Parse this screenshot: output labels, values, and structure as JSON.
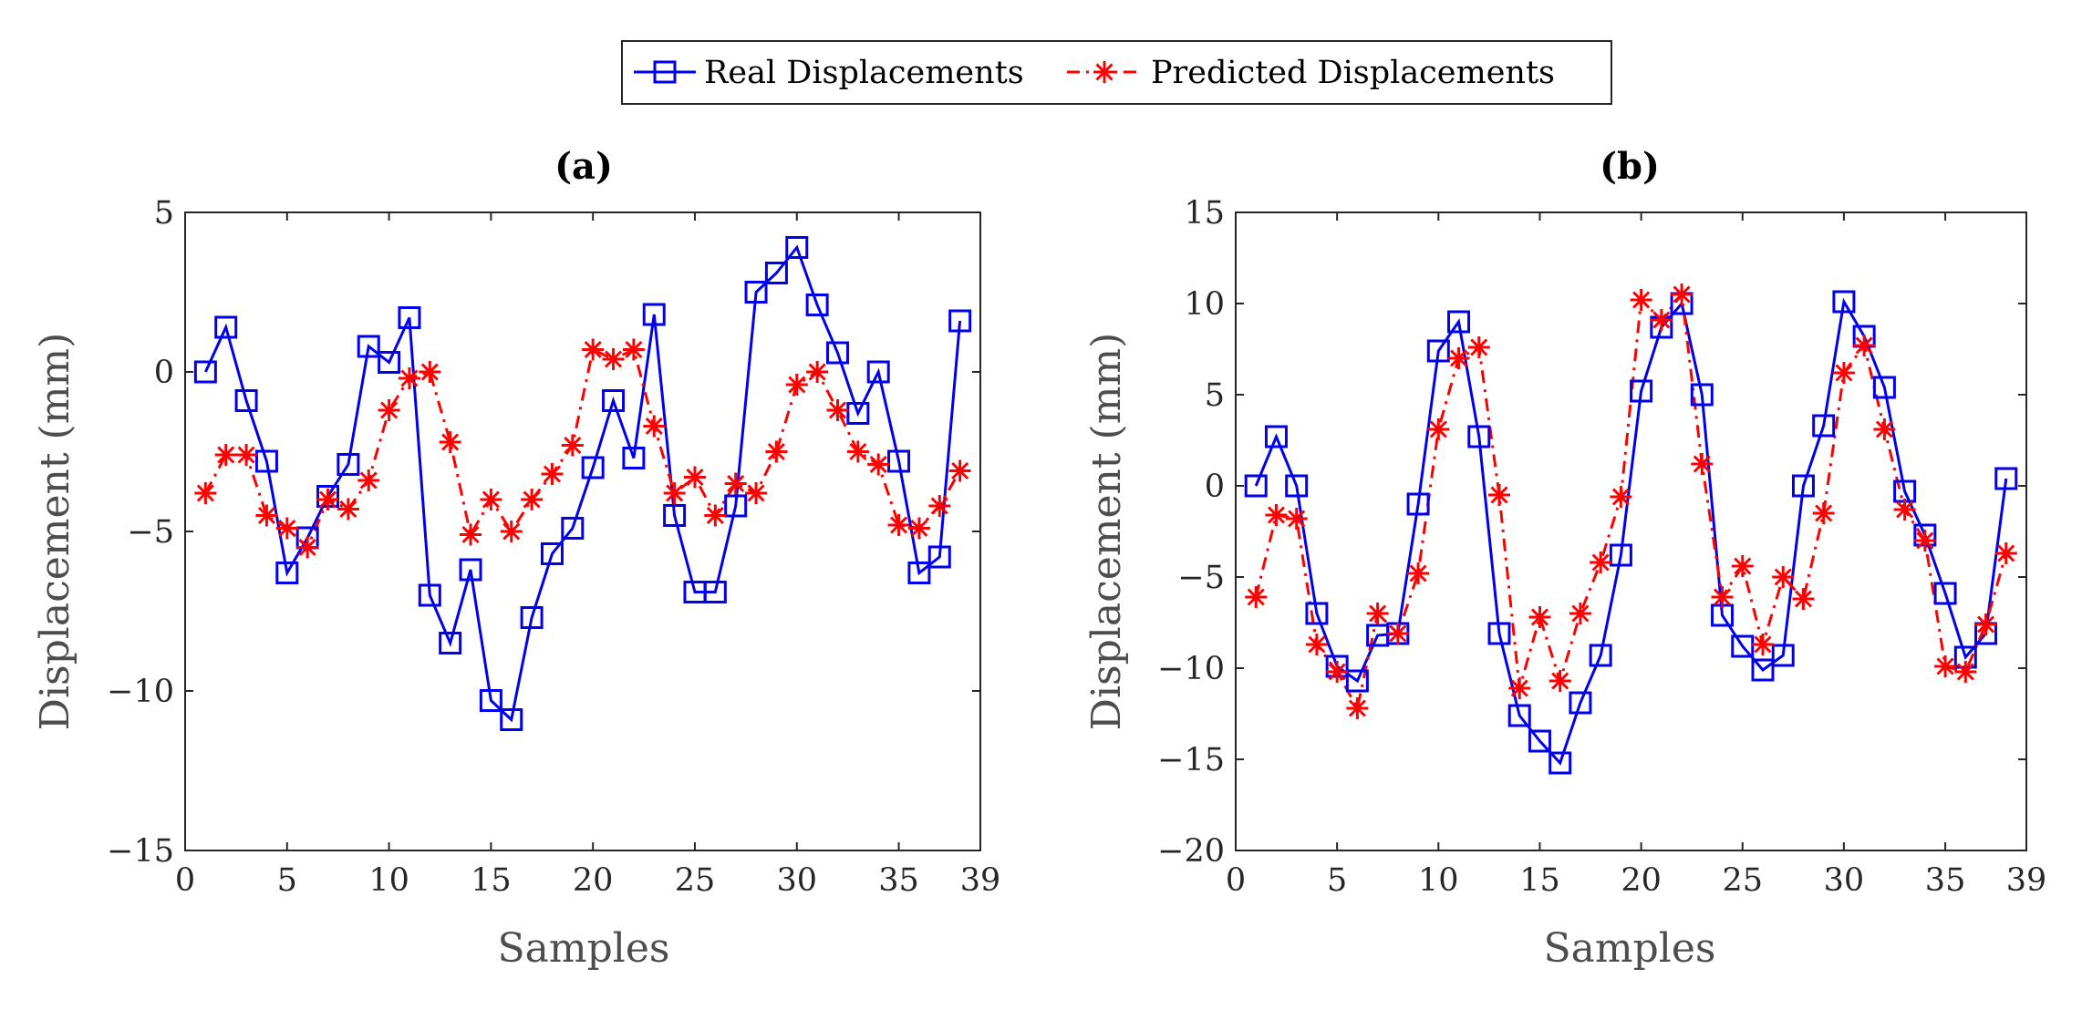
{
  "legend": {
    "real_label": "Real Displacements",
    "pred_label": "Predicted Displacements"
  },
  "colors": {
    "real": "#0000ee",
    "predicted": "#ff0000",
    "axis": "#262626"
  },
  "chart_data": [
    {
      "type": "line",
      "title": "(a)",
      "xlabel": "Samples",
      "ylabel": "Displacement (mm)",
      "xlim": [
        0,
        39
      ],
      "ylim": [
        -15,
        5
      ],
      "xticks": [
        0,
        5,
        10,
        15,
        20,
        25,
        30,
        35,
        39
      ],
      "yticks": [
        -15,
        -10,
        -5,
        0,
        5
      ],
      "ytick_labels": [
        "−15",
        "−10",
        "−5",
        "0",
        "5"
      ],
      "x": [
        1,
        2,
        3,
        4,
        5,
        6,
        7,
        8,
        9,
        10,
        11,
        12,
        13,
        14,
        15,
        16,
        17,
        18,
        19,
        20,
        21,
        22,
        23,
        24,
        25,
        26,
        27,
        28,
        29,
        30,
        31,
        32,
        33,
        34,
        35,
        36,
        37,
        38
      ],
      "series": [
        {
          "name": "Real Displacements",
          "marker": "square",
          "values": [
            0,
            1.4,
            -0.9,
            -2.8,
            -6.3,
            -5.2,
            -3.9,
            -2.9,
            0.8,
            0.3,
            1.7,
            -7.0,
            -8.5,
            -6.2,
            -10.3,
            -10.9,
            -7.7,
            -5.7,
            -4.9,
            -3.0,
            -0.9,
            -2.7,
            1.8,
            -4.5,
            -6.9,
            -6.9,
            -4.2,
            2.5,
            3.1,
            3.9,
            2.1,
            0.6,
            -1.3,
            0.0,
            -2.8,
            -6.3,
            -5.8,
            1.6
          ]
        },
        {
          "name": "Predicted Displacements",
          "marker": "asterisk",
          "values": [
            -3.8,
            -2.6,
            -2.6,
            -4.5,
            -4.9,
            -5.5,
            -4.0,
            -4.3,
            -3.4,
            -1.2,
            -0.2,
            0.0,
            -2.2,
            -5.1,
            -4.0,
            -5.0,
            -4.0,
            -3.2,
            -2.3,
            0.7,
            0.4,
            0.7,
            -1.7,
            -3.8,
            -3.3,
            -4.5,
            -3.5,
            -3.8,
            -2.5,
            -0.4,
            0.0,
            -1.2,
            -2.5,
            -2.9,
            -4.8,
            -4.9,
            -4.2,
            -3.1
          ]
        }
      ]
    },
    {
      "type": "line",
      "title": "(b)",
      "xlabel": "Samples",
      "ylabel": "Displacement (mm)",
      "xlim": [
        0,
        39
      ],
      "ylim": [
        -20,
        15
      ],
      "xticks": [
        0,
        5,
        10,
        15,
        20,
        25,
        30,
        35,
        39
      ],
      "yticks": [
        -20,
        -15,
        -10,
        -5,
        0,
        5,
        10,
        15
      ],
      "ytick_labels": [
        "−20",
        "−15",
        "−10",
        "−5",
        "0",
        "5",
        "10",
        "15"
      ],
      "x": [
        1,
        2,
        3,
        4,
        5,
        6,
        7,
        8,
        9,
        10,
        11,
        12,
        13,
        14,
        15,
        16,
        17,
        18,
        19,
        20,
        21,
        22,
        23,
        24,
        25,
        26,
        27,
        28,
        29,
        30,
        31,
        32,
        33,
        34,
        35,
        36,
        37,
        38
      ],
      "series": [
        {
          "name": "Real Displacements",
          "marker": "square",
          "values": [
            0,
            2.7,
            0.0,
            -7.0,
            -9.9,
            -10.7,
            -8.2,
            -8.1,
            -1.0,
            7.4,
            9.0,
            2.7,
            -8.1,
            -12.6,
            -14.0,
            -15.2,
            -11.9,
            -9.3,
            -3.8,
            5.2,
            8.7,
            10.0,
            5.0,
            -7.1,
            -8.8,
            -10.1,
            -9.3,
            0.0,
            3.3,
            10.1,
            8.2,
            5.4,
            -0.3,
            -2.7,
            -5.9,
            -9.4,
            -8.1,
            0.4
          ]
        },
        {
          "name": "Predicted Displacements",
          "marker": "asterisk",
          "values": [
            -6.1,
            -1.6,
            -1.8,
            -8.7,
            -10.2,
            -12.2,
            -7.0,
            -8.1,
            -4.8,
            3.1,
            7.0,
            7.6,
            -0.5,
            -11.1,
            -7.2,
            -10.7,
            -7.0,
            -4.2,
            -0.6,
            10.2,
            9.1,
            10.5,
            1.2,
            -6.1,
            -4.4,
            -8.7,
            -5.0,
            -6.2,
            -1.5,
            6.2,
            7.7,
            3.1,
            -1.3,
            -3.0,
            -9.9,
            -10.2,
            -7.6,
            -3.7
          ]
        }
      ]
    }
  ]
}
